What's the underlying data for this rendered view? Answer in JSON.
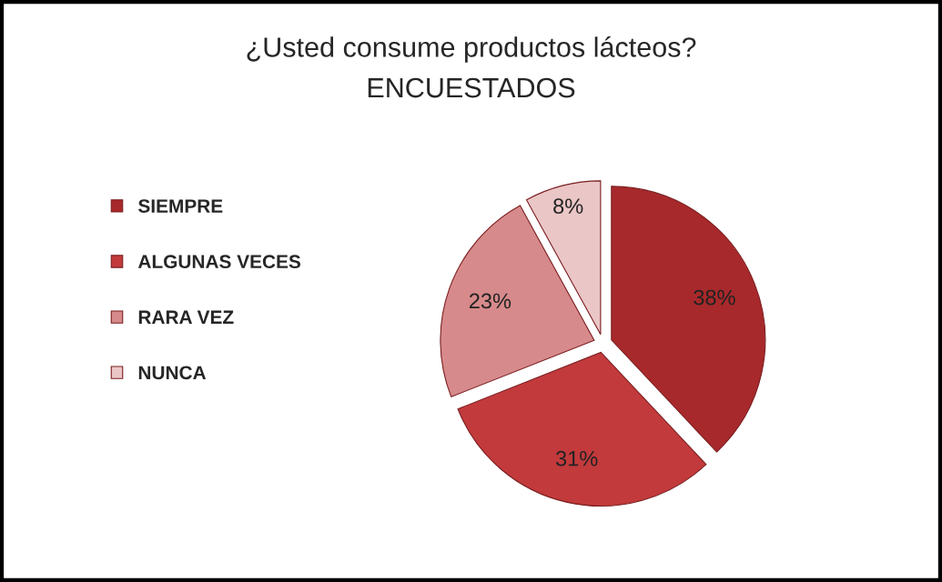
{
  "chart_data": {
    "type": "pie",
    "title": "¿Usted consume productos lácteos?",
    "subtitle": "ENCUESTADOS",
    "categories": [
      "SIEMPRE",
      "ALGUNAS VECES",
      "RARA VEZ",
      "NUNCA"
    ],
    "values": [
      38,
      31,
      23,
      8
    ],
    "colors": [
      "#a8292b",
      "#c23a3c",
      "#d78a8b",
      "#ebc6c7"
    ],
    "value_labels": [
      "38%",
      "31%",
      "23%",
      "8%"
    ],
    "legend": "left"
  }
}
